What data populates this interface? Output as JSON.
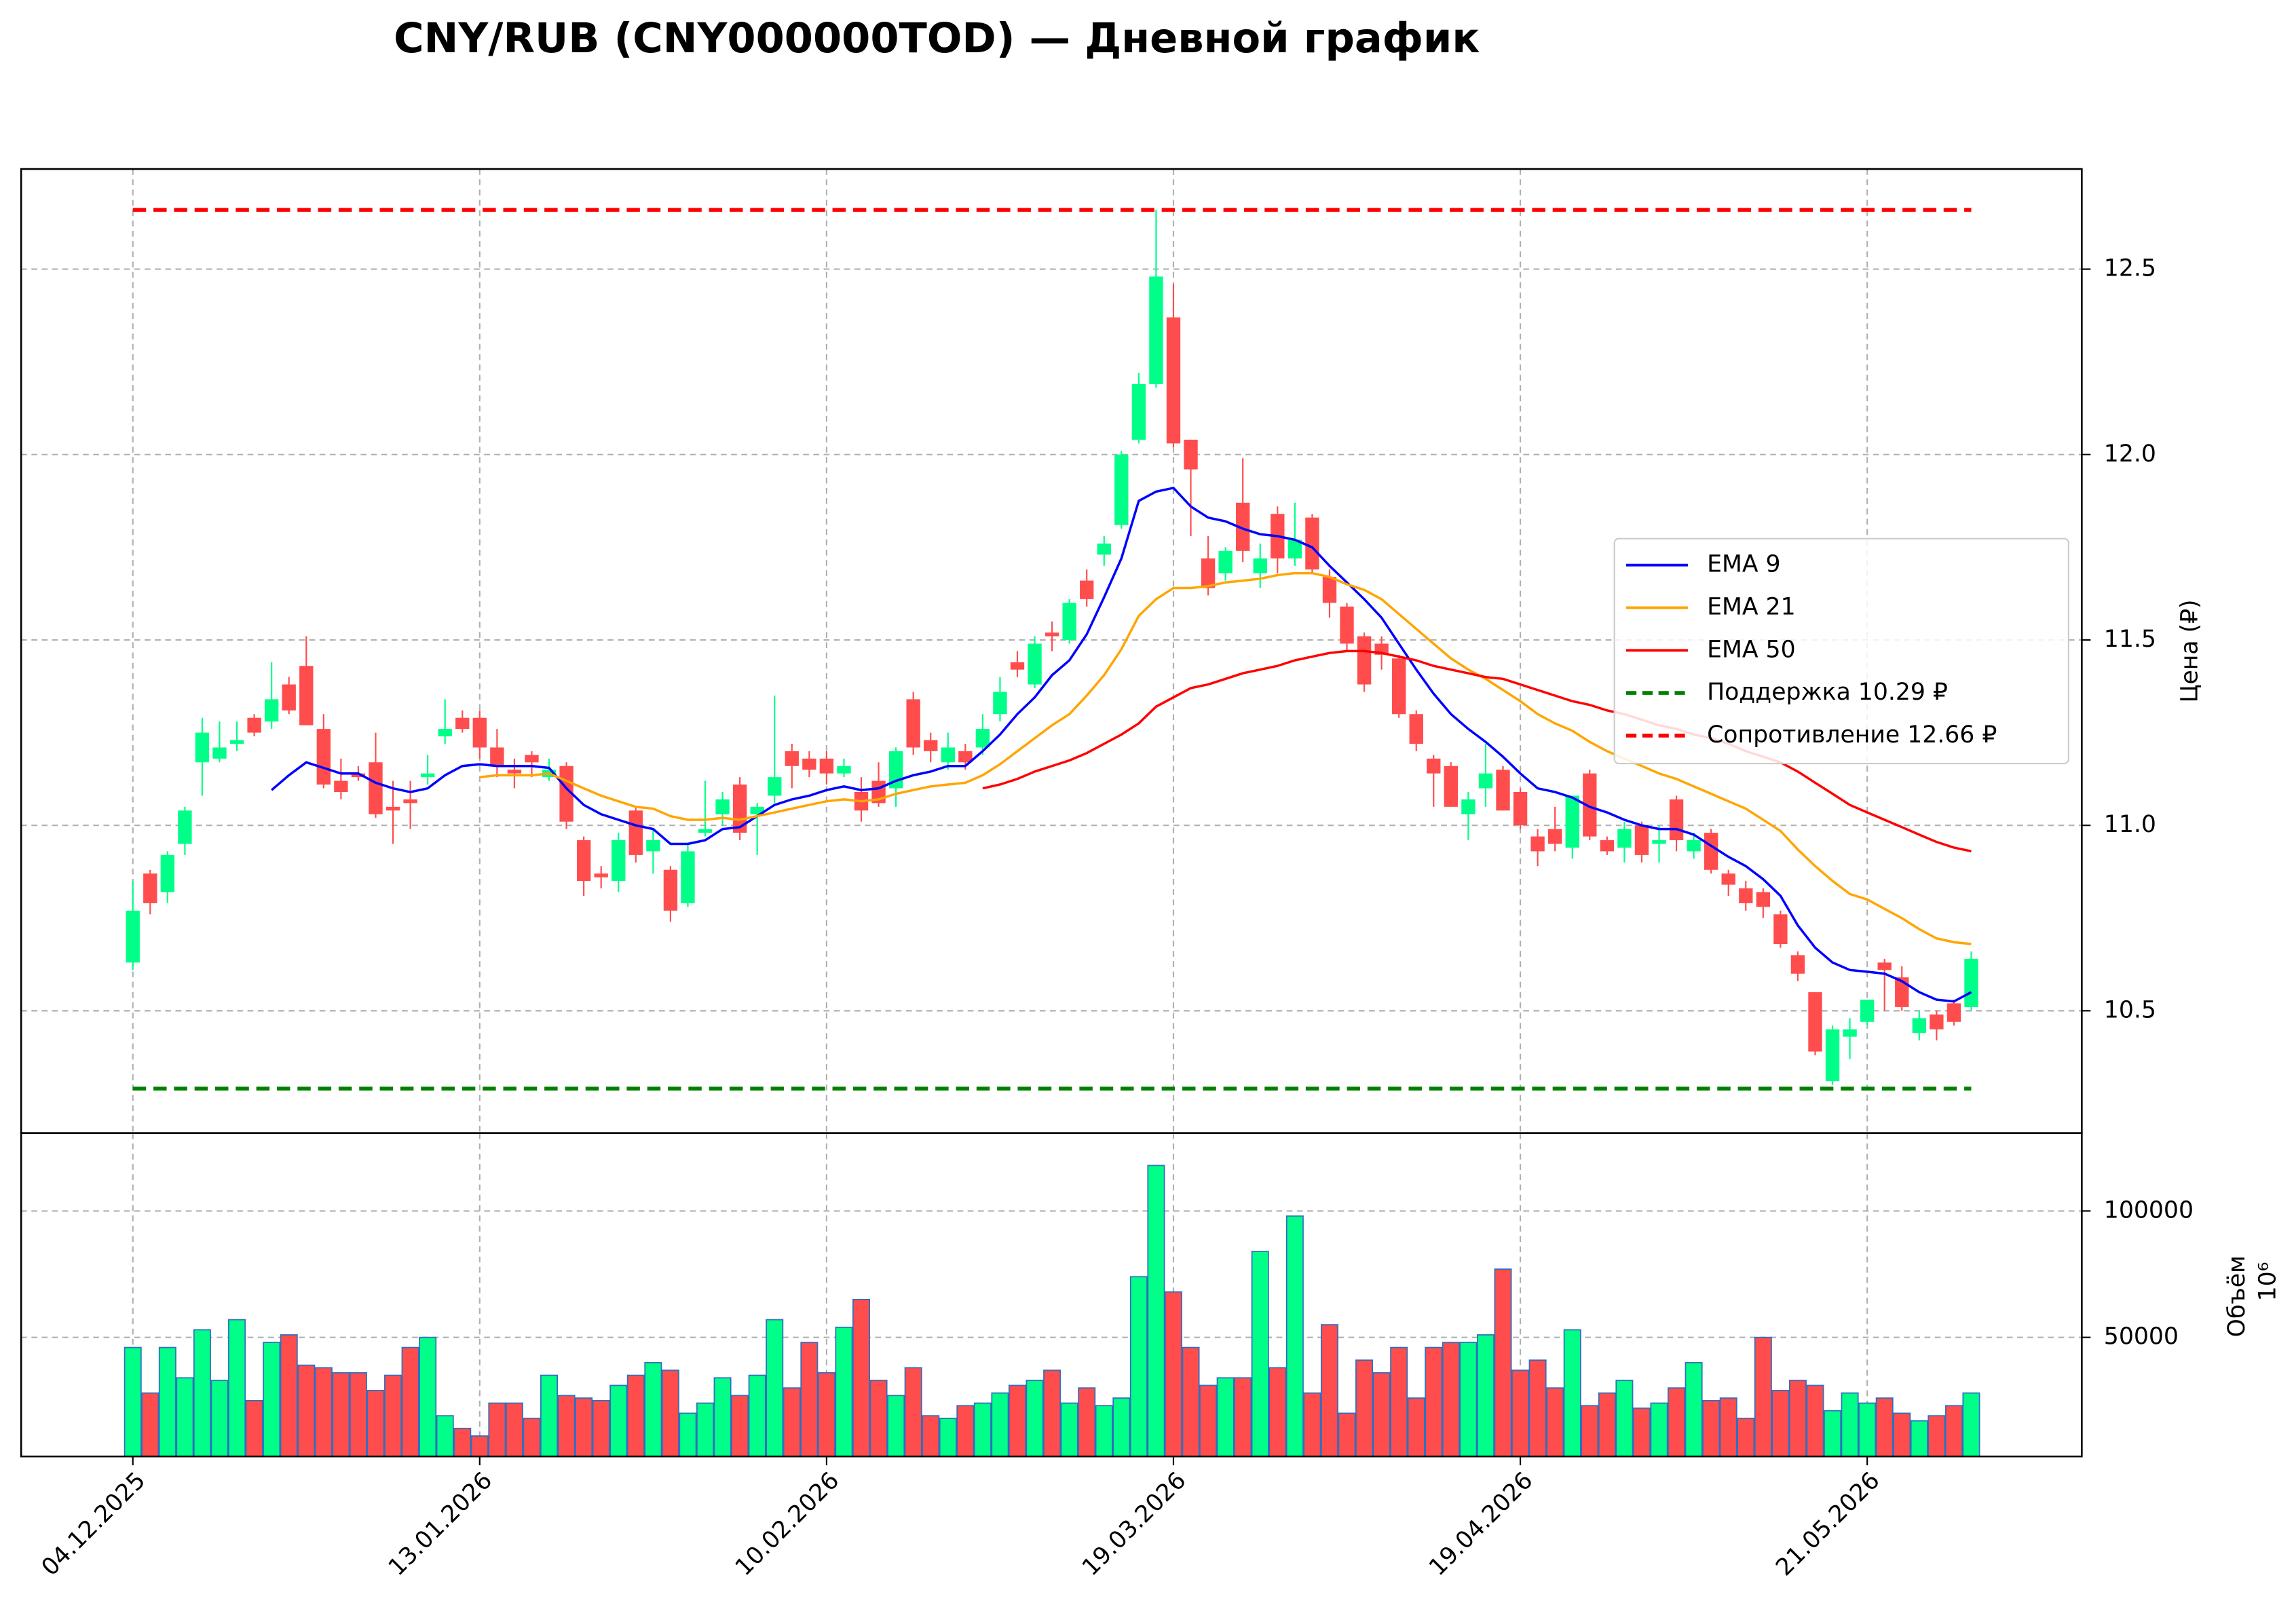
{
  "chart_data": {
    "type": "candlestick",
    "title": "CNY/RUB (CNY000000TOD) — Дневной график",
    "y_label": "Цена (₽)",
    "up_color": "#00ff88",
    "down_color": "#ff4d4d",
    "grid": true,
    "legend": "center right",
    "categories": [
      "04.12.2025",
      null,
      null,
      null,
      null,
      null,
      null,
      null,
      null,
      null,
      null,
      null,
      null,
      null,
      null,
      null,
      null,
      null,
      null,
      null,
      "13.01.2026",
      null,
      null,
      null,
      null,
      null,
      null,
      null,
      null,
      null,
      null,
      null,
      null,
      null,
      null,
      null,
      null,
      null,
      null,
      null,
      "10.02.2026",
      null,
      null,
      null,
      null,
      null,
      null,
      null,
      null,
      null,
      null,
      null,
      null,
      null,
      null,
      null,
      null,
      null,
      null,
      null,
      "19.03.2026",
      null,
      null,
      null,
      null,
      null,
      null,
      null,
      null,
      null,
      null,
      null,
      null,
      null,
      null,
      null,
      null,
      null,
      null,
      null,
      "19.04.2026",
      null,
      null,
      null,
      null,
      null,
      null,
      null,
      null,
      null,
      null,
      null,
      null,
      null,
      null,
      null,
      null,
      null,
      null,
      null,
      "21.05.2026",
      null,
      null,
      null,
      null,
      null,
      null
    ],
    "open": [
      10.63,
      10.87,
      10.82,
      10.95,
      11.17,
      11.18,
      11.22,
      11.29,
      11.28,
      11.38,
      11.43,
      11.26,
      11.12,
      11.14,
      11.17,
      11.05,
      11.07,
      11.13,
      11.24,
      11.29,
      11.29,
      11.21,
      11.15,
      11.19,
      11.13,
      11.16,
      10.96,
      10.87,
      10.85,
      11.04,
      10.93,
      10.88,
      10.79,
      10.98,
      11.03,
      11.11,
      11.03,
      11.08,
      11.2,
      11.18,
      11.18,
      11.14,
      11.09,
      11.12,
      11.1,
      11.34,
      11.23,
      11.17,
      11.2,
      11.21,
      11.3,
      11.44,
      11.38,
      11.52,
      11.5,
      11.66,
      11.73,
      11.81,
      12.04,
      12.19,
      12.37,
      12.04,
      11.72,
      11.68,
      11.87,
      11.68,
      11.84,
      11.72,
      11.83,
      11.67,
      11.59,
      11.51,
      11.49,
      11.45,
      11.3,
      11.18,
      11.16,
      11.03,
      11.1,
      11.15,
      11.09,
      10.97,
      10.99,
      10.94,
      11.14,
      10.96,
      10.94,
      11.0,
      10.95,
      11.07,
      10.93,
      10.98,
      10.87,
      10.83,
      10.82,
      10.76,
      10.65,
      10.55,
      10.31,
      10.43,
      10.47,
      10.63,
      10.59,
      10.44,
      10.49,
      10.52,
      10.51
    ],
    "high": [
      10.85,
      10.88,
      10.93,
      11.05,
      11.29,
      11.28,
      11.28,
      11.3,
      11.44,
      11.4,
      11.51,
      11.3,
      11.18,
      11.16,
      11.25,
      11.12,
      11.12,
      11.19,
      11.34,
      11.31,
      11.31,
      11.26,
      11.18,
      11.2,
      11.18,
      11.17,
      10.97,
      10.89,
      10.98,
      11.05,
      10.99,
      10.89,
      10.95,
      11.12,
      11.09,
      11.13,
      11.06,
      11.35,
      11.22,
      11.2,
      11.2,
      11.18,
      11.13,
      11.17,
      11.21,
      11.36,
      11.25,
      11.25,
      11.22,
      11.3,
      11.4,
      11.47,
      11.51,
      11.55,
      11.61,
      11.69,
      11.78,
      12.01,
      12.22,
      12.66,
      12.46,
      12.04,
      11.78,
      11.75,
      11.99,
      11.76,
      11.86,
      11.87,
      11.84,
      11.69,
      11.6,
      11.52,
      11.51,
      11.46,
      11.31,
      11.19,
      11.17,
      11.09,
      11.22,
      11.16,
      11.1,
      10.99,
      11.05,
      11.08,
      11.15,
      10.97,
      11.01,
      11.01,
      11.0,
      11.08,
      10.98,
      10.99,
      10.88,
      10.85,
      10.83,
      10.77,
      10.66,
      10.55,
      10.46,
      10.48,
      10.53,
      10.64,
      10.62,
      10.5,
      10.5,
      10.53,
      10.66
    ],
    "low": [
      10.61,
      10.76,
      10.79,
      10.92,
      11.08,
      11.17,
      11.2,
      11.24,
      11.26,
      11.3,
      11.27,
      11.1,
      11.07,
      11.12,
      11.02,
      10.95,
      10.99,
      11.11,
      11.22,
      11.25,
      11.18,
      11.13,
      11.1,
      11.13,
      11.12,
      10.99,
      10.81,
      10.83,
      10.82,
      10.9,
      10.87,
      10.74,
      10.78,
      10.97,
      11.0,
      10.96,
      10.92,
      11.06,
      11.1,
      11.13,
      11.11,
      11.13,
      11.01,
      11.05,
      11.05,
      11.19,
      11.17,
      11.15,
      11.15,
      11.19,
      11.28,
      11.4,
      11.37,
      11.47,
      11.49,
      11.59,
      11.7,
      11.8,
      12.03,
      12.18,
      12.02,
      11.78,
      11.62,
      11.66,
      11.71,
      11.64,
      11.68,
      11.7,
      11.68,
      11.56,
      11.47,
      11.36,
      11.42,
      11.29,
      11.2,
      11.05,
      11.05,
      10.96,
      11.05,
      11.04,
      10.99,
      10.89,
      10.93,
      10.91,
      10.96,
      10.92,
      10.9,
      10.9,
      10.9,
      10.93,
      10.91,
      10.87,
      10.81,
      10.77,
      10.75,
      10.67,
      10.58,
      10.38,
      10.3,
      10.37,
      10.46,
      10.5,
      10.5,
      10.42,
      10.42,
      10.46,
      10.5
    ],
    "close": [
      10.77,
      10.79,
      10.92,
      11.04,
      11.25,
      11.21,
      11.23,
      11.25,
      11.34,
      11.31,
      11.27,
      11.11,
      11.09,
      11.13,
      11.03,
      11.04,
      11.06,
      11.14,
      11.26,
      11.26,
      11.21,
      11.16,
      11.14,
      11.17,
      11.15,
      11.01,
      10.85,
      10.86,
      10.96,
      10.92,
      10.96,
      10.77,
      10.93,
      10.99,
      11.07,
      10.98,
      11.05,
      11.13,
      11.16,
      11.15,
      11.14,
      11.16,
      11.04,
      11.06,
      11.2,
      11.21,
      11.2,
      11.21,
      11.17,
      11.26,
      11.36,
      11.42,
      11.49,
      11.51,
      11.6,
      11.61,
      11.76,
      12.0,
      12.19,
      12.48,
      12.03,
      11.96,
      11.64,
      11.74,
      11.74,
      11.72,
      11.72,
      11.77,
      11.69,
      11.6,
      11.49,
      11.38,
      11.46,
      11.3,
      11.22,
      11.14,
      11.05,
      11.07,
      11.14,
      11.04,
      11.0,
      10.93,
      10.95,
      11.08,
      10.97,
      10.93,
      10.99,
      10.92,
      10.96,
      10.96,
      10.96,
      10.88,
      10.84,
      10.79,
      10.78,
      10.68,
      10.6,
      10.39,
      10.45,
      10.45,
      10.53,
      10.61,
      10.51,
      10.48,
      10.45,
      10.47,
      10.64
    ],
    "series": [
      {
        "name": "EMA 9",
        "color": "#0000ff",
        "values": [
          null,
          null,
          null,
          null,
          null,
          null,
          null,
          null,
          11.095,
          11.135,
          11.17,
          11.155,
          11.14,
          11.14,
          11.115,
          11.1,
          11.09,
          11.1,
          11.135,
          11.16,
          11.165,
          11.16,
          11.16,
          11.16,
          11.155,
          11.1,
          11.055,
          11.03,
          11.015,
          11.0,
          10.99,
          10.95,
          10.95,
          10.96,
          10.99,
          10.995,
          11.025,
          11.055,
          11.07,
          11.08,
          11.095,
          11.105,
          11.095,
          11.1,
          11.12,
          11.135,
          11.145,
          11.16,
          11.16,
          11.2,
          11.245,
          11.3,
          11.345,
          11.405,
          11.445,
          11.515,
          11.615,
          11.72,
          11.875,
          11.9,
          11.91,
          11.86,
          11.83,
          11.82,
          11.8,
          11.785,
          11.78,
          11.77,
          11.75,
          11.7,
          11.655,
          11.61,
          11.56,
          11.49,
          11.42,
          11.355,
          11.3,
          11.26,
          11.225,
          11.185,
          11.14,
          11.1,
          11.09,
          11.075,
          11.05,
          11.035,
          11.015,
          11.0,
          10.99,
          10.99,
          10.975,
          10.945,
          10.915,
          10.89,
          10.855,
          10.81,
          10.73,
          10.67,
          10.63,
          10.61,
          10.605,
          10.6,
          10.58,
          10.55,
          10.53,
          10.525,
          10.55
        ]
      },
      {
        "name": "EMA 21",
        "color": "#ffa500",
        "values": [
          null,
          null,
          null,
          null,
          null,
          null,
          null,
          null,
          null,
          null,
          null,
          null,
          null,
          null,
          null,
          null,
          null,
          null,
          null,
          null,
          11.13,
          11.135,
          11.135,
          11.135,
          11.14,
          11.12,
          11.1,
          11.08,
          11.065,
          11.05,
          11.045,
          11.025,
          11.015,
          11.015,
          11.02,
          11.015,
          11.025,
          11.035,
          11.045,
          11.055,
          11.065,
          11.07,
          11.065,
          11.07,
          11.085,
          11.095,
          11.105,
          11.11,
          11.115,
          11.135,
          11.165,
          11.2,
          11.235,
          11.27,
          11.3,
          11.35,
          11.405,
          11.475,
          11.565,
          11.61,
          11.64,
          11.64,
          11.645,
          11.655,
          11.66,
          11.665,
          11.675,
          11.68,
          11.68,
          11.67,
          11.65,
          11.635,
          11.61,
          11.57,
          11.53,
          11.49,
          11.45,
          11.42,
          11.395,
          11.365,
          11.335,
          11.3,
          11.275,
          11.255,
          11.225,
          11.2,
          11.18,
          11.16,
          11.14,
          11.125,
          11.105,
          11.085,
          11.065,
          11.045,
          11.015,
          10.985,
          10.935,
          10.89,
          10.85,
          10.815,
          10.8,
          10.775,
          10.75,
          10.72,
          10.695,
          10.685,
          10.68
        ]
      },
      {
        "name": "EMA 50",
        "color": "#ff0000",
        "values": [
          null,
          null,
          null,
          null,
          null,
          null,
          null,
          null,
          null,
          null,
          null,
          null,
          null,
          null,
          null,
          null,
          null,
          null,
          null,
          null,
          null,
          null,
          null,
          null,
          null,
          null,
          null,
          null,
          null,
          null,
          null,
          null,
          null,
          null,
          null,
          null,
          null,
          null,
          null,
          null,
          null,
          null,
          null,
          null,
          null,
          null,
          null,
          null,
          null,
          11.1,
          11.11,
          11.125,
          11.145,
          11.16,
          11.175,
          11.195,
          11.22,
          11.245,
          11.275,
          11.32,
          11.345,
          11.37,
          11.38,
          11.395,
          11.41,
          11.42,
          11.43,
          11.445,
          11.455,
          11.465,
          11.47,
          11.47,
          11.465,
          11.455,
          11.445,
          11.43,
          11.42,
          11.41,
          11.4,
          11.395,
          11.38,
          11.365,
          11.35,
          11.335,
          11.325,
          11.31,
          11.3,
          11.285,
          11.27,
          11.26,
          11.245,
          11.235,
          11.22,
          11.2,
          11.185,
          11.17,
          11.145,
          11.115,
          11.085,
          11.055,
          11.035,
          11.015,
          10.995,
          10.975,
          10.955,
          10.94,
          10.93
        ]
      }
    ],
    "levels": [
      {
        "name": "Поддержка 10.29 ₽",
        "value": 10.29,
        "color": "#008000"
      },
      {
        "name": "Сопротивление 12.66 ₽",
        "value": 12.66,
        "color": "#ff0000"
      }
    ],
    "ylim": [
      10.17,
      12.77
    ],
    "yticks": [
      10.5,
      {
        "value": 11,
        "label": "11.0"
      },
      11.5,
      {
        "value": 12,
        "label": "12.0"
      },
      12.5
    ],
    "volume": {
      "label": "Объём",
      "offset_label": "10⁶",
      "edge_color": "#2f6fbf",
      "values": [
        46000,
        28000,
        46000,
        34000,
        53000,
        33000,
        57000,
        25000,
        48000,
        51000,
        39000,
        38000,
        36000,
        36000,
        29000,
        35000,
        46000,
        50000,
        19000,
        14000,
        11000,
        24000,
        24000,
        18000,
        35000,
        27000,
        26000,
        25000,
        31000,
        35000,
        40000,
        37000,
        20000,
        24000,
        34000,
        27000,
        35000,
        57000,
        30000,
        48000,
        36000,
        54000,
        65000,
        33000,
        27000,
        38000,
        19000,
        18000,
        23000,
        24000,
        28000,
        31000,
        33000,
        37000,
        24000,
        30000,
        23000,
        26000,
        74000,
        118000,
        68000,
        46000,
        31000,
        34000,
        34000,
        84000,
        38000,
        98000,
        28000,
        55000,
        20000,
        41000,
        36000,
        46000,
        26000,
        46000,
        48000,
        48000,
        51000,
        77000,
        37000,
        41000,
        30000,
        53000,
        23000,
        28000,
        33000,
        22000,
        24000,
        30000,
        40000,
        25000,
        26000,
        18000,
        50000,
        29000,
        33000,
        31000,
        21000,
        28000,
        24000,
        26000,
        20000,
        17000,
        19000,
        23000,
        28000
      ],
      "ylim": [
        2900,
        130800
      ],
      "yticks": [
        50000,
        100000
      ]
    }
  }
}
